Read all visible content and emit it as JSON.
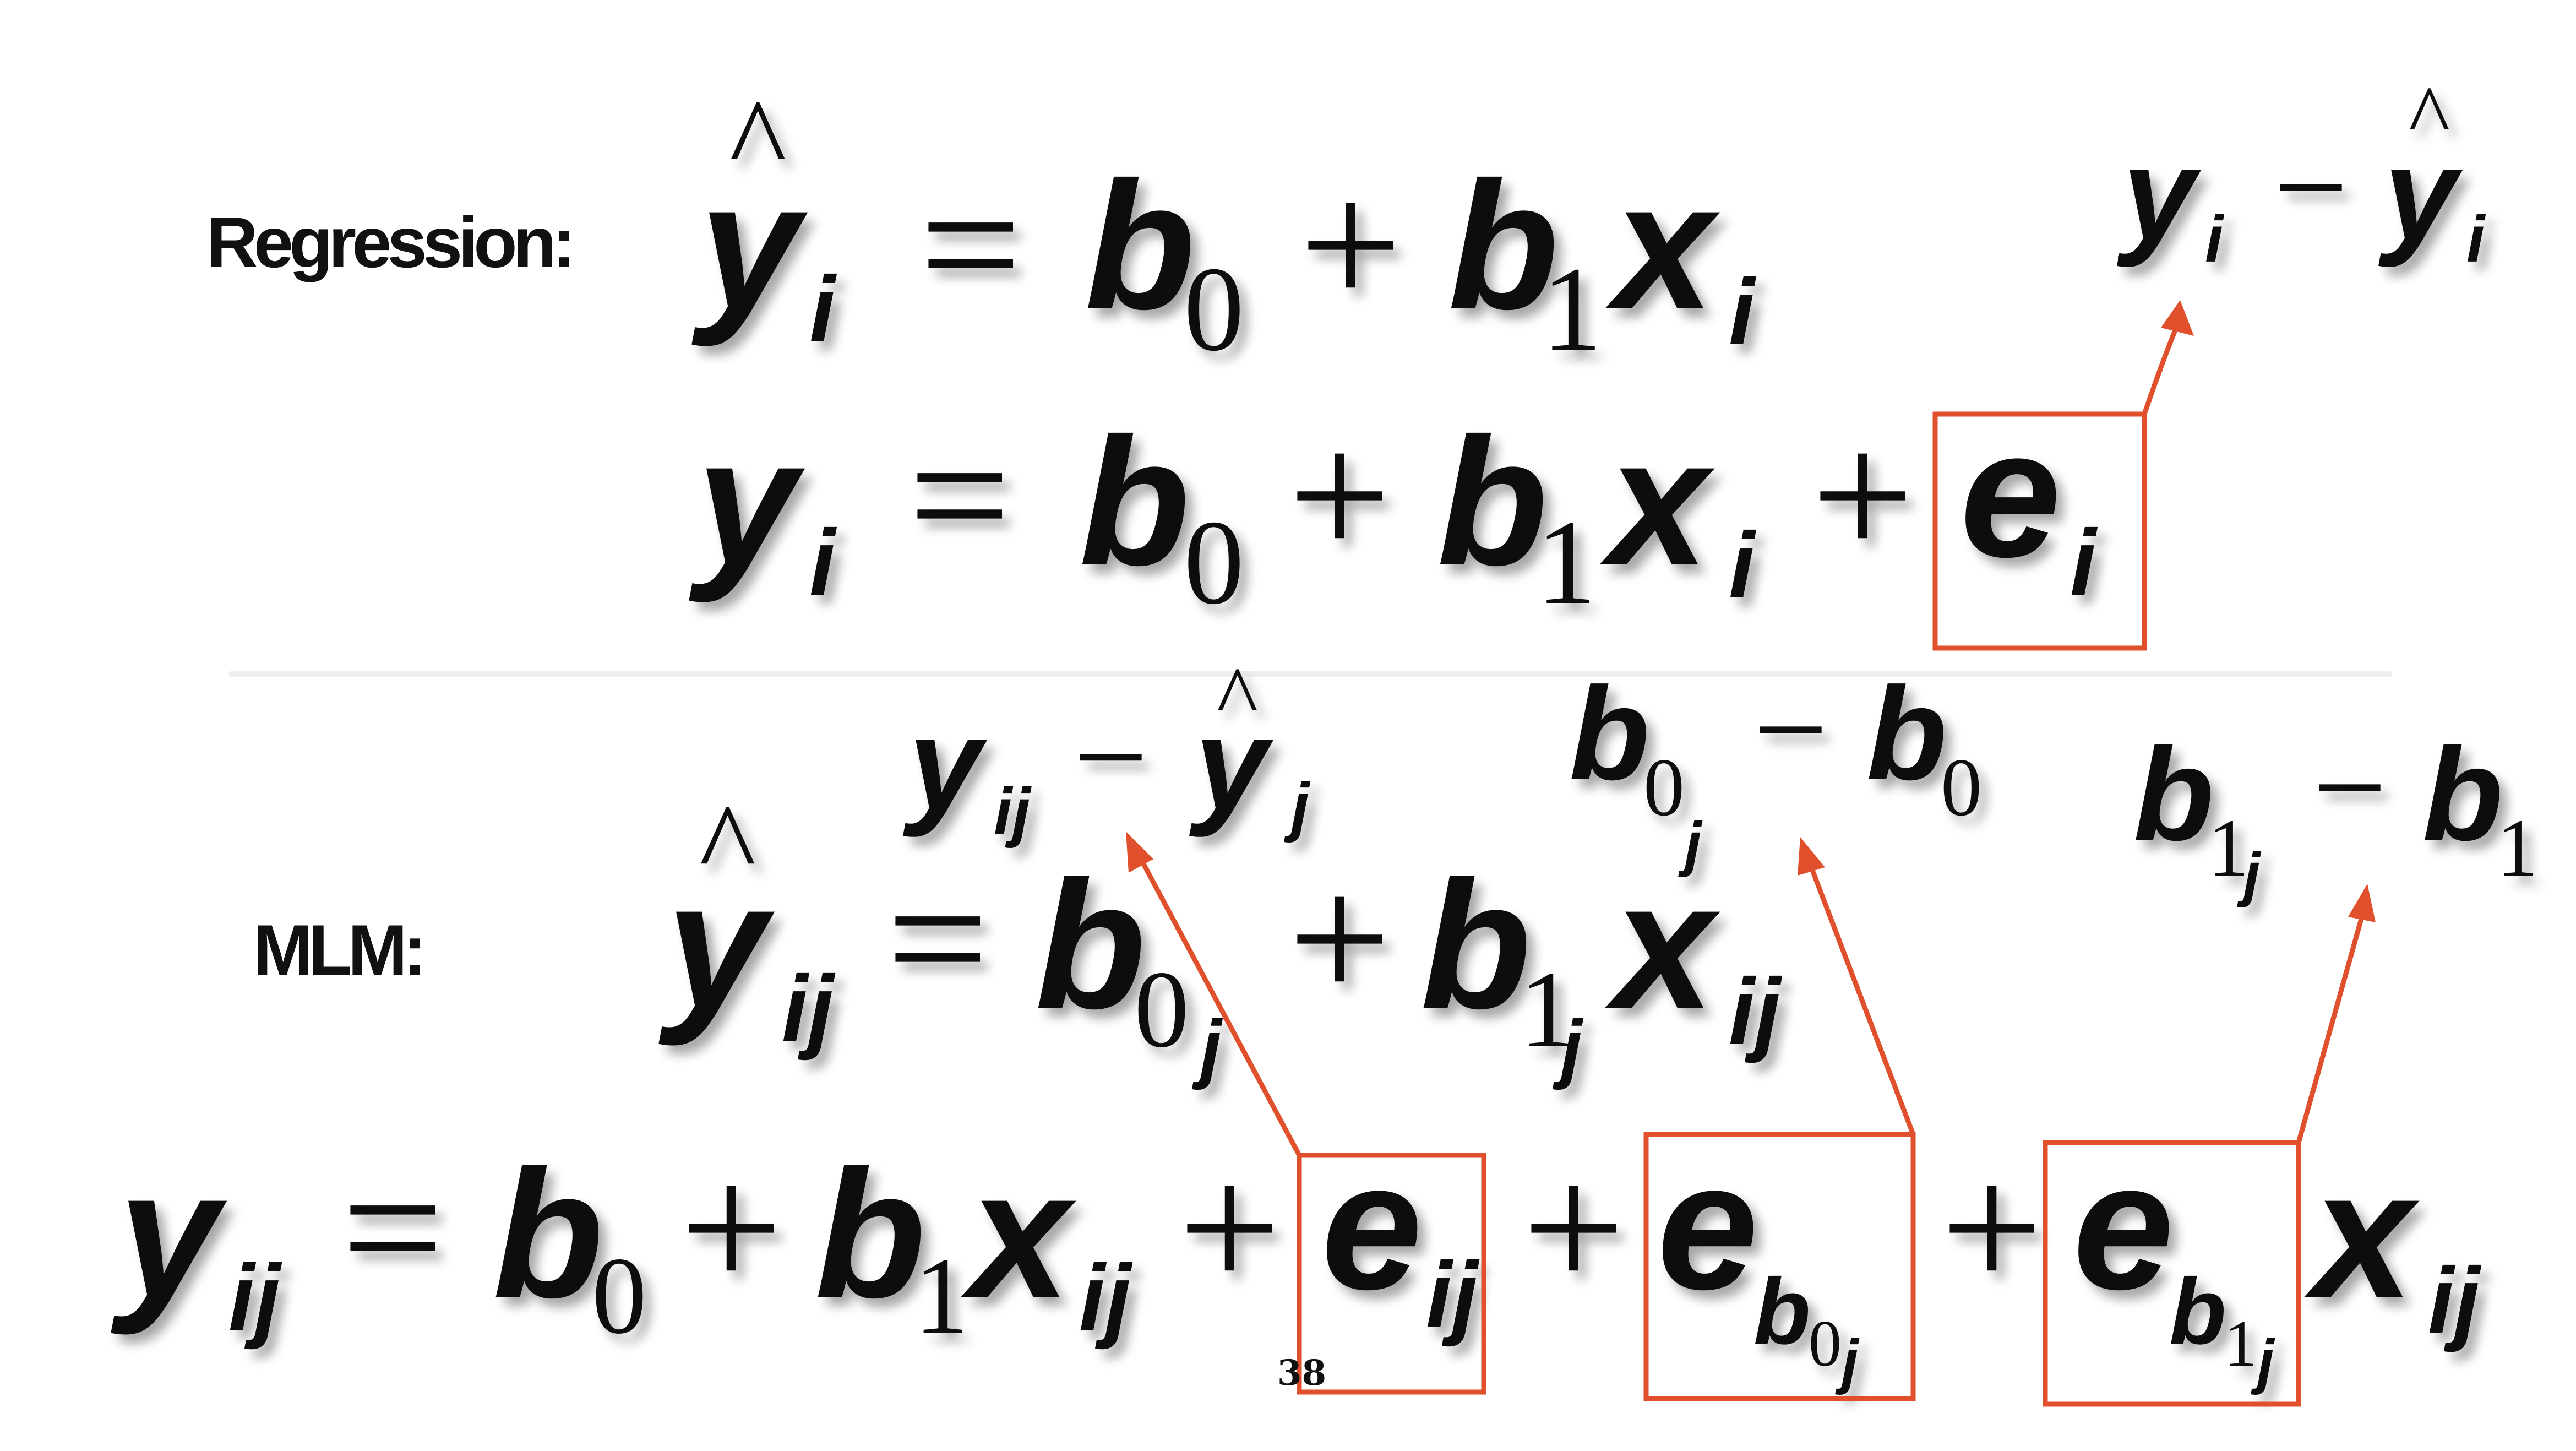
{
  "labels": {
    "regression": "Regression:",
    "mlm": "MLM:"
  },
  "page_number": "38",
  "colors": {
    "highlight": "#e0502c",
    "text": "#111111",
    "divider": "#eeeeee",
    "background": "#ffffff"
  },
  "symbols": {
    "y": "y",
    "b": "b",
    "x": "x",
    "e": "e",
    "i": "i",
    "j": "j",
    "ij": "ij",
    "zero": "0",
    "one": "1",
    "hat": "^",
    "equals": "=",
    "plus": "+",
    "minus": "−"
  }
}
